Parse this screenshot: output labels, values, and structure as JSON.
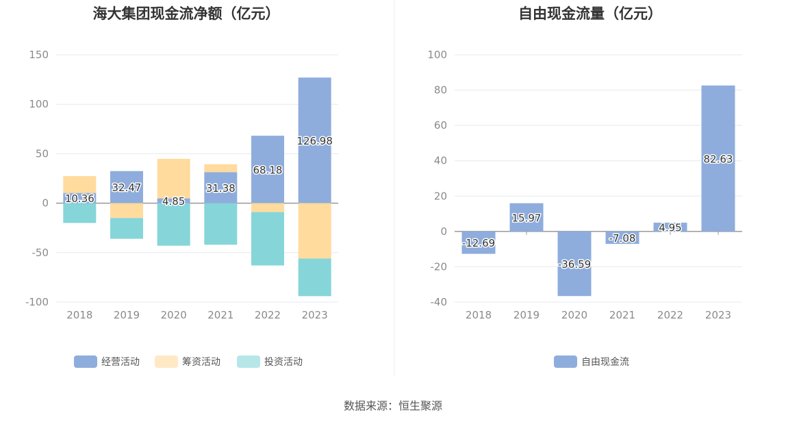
{
  "colors": {
    "operating": "#8eaddc",
    "financing": "#ffdb9e",
    "investing": "#86d5d9",
    "fcf": "#8eaddc",
    "grid": "#e6e8ef",
    "axis": "#999999",
    "divider": "#eeeeee"
  },
  "chart_data": [
    {
      "type": "bar",
      "stacked": true,
      "title": "海大集团现金流净额（亿元）",
      "categories": [
        "2018",
        "2019",
        "2020",
        "2021",
        "2022",
        "2023"
      ],
      "ylim": [
        -100,
        150
      ],
      "yticks": [
        150,
        100,
        50,
        0,
        -50,
        -100
      ],
      "grid": true,
      "legend_position": "bottom",
      "series": [
        {
          "name": "经营活动",
          "values": [
            10.36,
            32.47,
            4.85,
            31.38,
            68.18,
            126.98
          ],
          "labels": [
            "10.36",
            "32.47",
            "4.85",
            "31.38",
            "68.18",
            "126.98"
          ]
        },
        {
          "name": "筹资活动",
          "values": [
            17,
            -15,
            40,
            8,
            -9,
            -56
          ]
        },
        {
          "name": "投资活动",
          "values": [
            -20,
            -21,
            -43,
            -42,
            -54,
            -38
          ]
        }
      ]
    },
    {
      "type": "bar",
      "title": "自由现金流量（亿元）",
      "categories": [
        "2018",
        "2019",
        "2020",
        "2021",
        "2022",
        "2023"
      ],
      "ylim": [
        -40,
        100
      ],
      "yticks": [
        100,
        80,
        60,
        40,
        20,
        0,
        -20,
        -40
      ],
      "grid": true,
      "legend_position": "bottom",
      "series": [
        {
          "name": "自由现金流",
          "values": [
            -12.69,
            15.97,
            -36.59,
            -7.08,
            4.95,
            82.63
          ],
          "labels": [
            "-12.69",
            "15.97",
            "-36.59",
            "-7.08",
            "4.95",
            "82.63"
          ]
        }
      ]
    }
  ],
  "footer": {
    "source": "数据来源：恒生聚源"
  }
}
